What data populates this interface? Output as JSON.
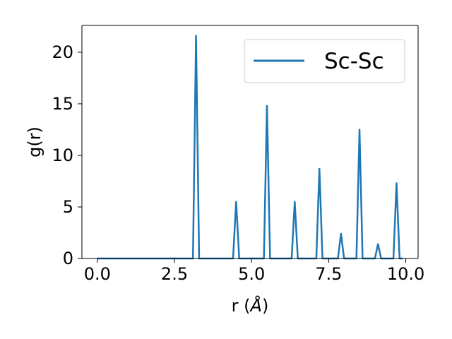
{
  "chart_data": {
    "type": "line",
    "xlabel_main": "r (",
    "xlabel_unit": "Å",
    "xlabel_close": ")",
    "ylabel": "g(r)",
    "xlim": [
      -0.5,
      10.4
    ],
    "ylim": [
      0,
      22.6
    ],
    "xticks": [
      0,
      2.5,
      5,
      7.5,
      10
    ],
    "xtick_labels": [
      "0.0",
      "2.5",
      "5.0",
      "7.5",
      "10.0"
    ],
    "yticks": [
      0,
      5,
      10,
      15,
      20
    ],
    "ytick_labels": [
      "0",
      "5",
      "10",
      "15",
      "20"
    ],
    "legend_position": "top-right",
    "grid": false,
    "series": [
      {
        "name": "Sc-Sc",
        "color": "#1f77b4",
        "x": [
          0.0,
          3.1,
          3.2,
          3.3,
          4.4,
          4.5,
          4.6,
          5.4,
          5.5,
          5.6,
          6.3,
          6.4,
          6.5,
          7.1,
          7.2,
          7.3,
          7.8,
          7.9,
          8.0,
          8.4,
          8.5,
          8.6,
          9.0,
          9.1,
          9.2,
          9.6,
          9.7,
          9.8,
          9.9
        ],
        "y": [
          0,
          0,
          21.6,
          0,
          0,
          5.5,
          0,
          0,
          14.8,
          0,
          0,
          5.5,
          0,
          0,
          8.7,
          0,
          0,
          2.4,
          0,
          0,
          12.5,
          0,
          0,
          1.4,
          0,
          0,
          7.3,
          0,
          0
        ]
      }
    ]
  }
}
